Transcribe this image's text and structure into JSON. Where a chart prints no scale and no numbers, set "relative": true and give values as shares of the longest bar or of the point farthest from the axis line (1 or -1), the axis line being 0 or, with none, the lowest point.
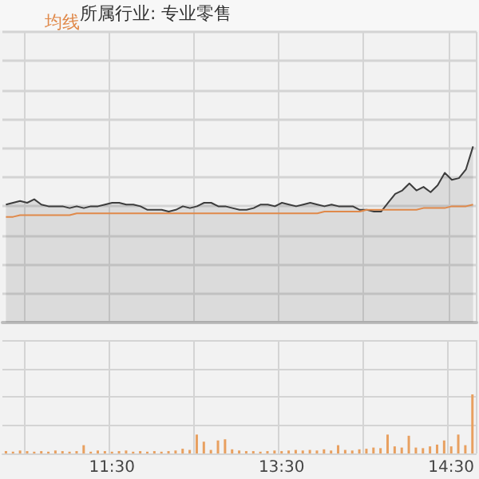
{
  "chart_data": [
    {
      "type": "line",
      "relative": true,
      "legend": "top left",
      "grid": true,
      "tick_labels": false,
      "annotations": [
        "所属行业: 专业零售"
      ],
      "categories": [
        null,
        null,
        null,
        null,
        null,
        null,
        null,
        null,
        null,
        null,
        null,
        null,
        null,
        null,
        null,
        null,
        null,
        null,
        null,
        null,
        null,
        null,
        null,
        null,
        null,
        null,
        null,
        null,
        null,
        null,
        null,
        null,
        null,
        null,
        null,
        null,
        null,
        null,
        null,
        null,
        null,
        null,
        null,
        null,
        null,
        null,
        null,
        null,
        null,
        null,
        null,
        null,
        null,
        null,
        null,
        null,
        null,
        null,
        null,
        null,
        null,
        null,
        null,
        null,
        null,
        null,
        null
      ],
      "series": [
        {
          "type": "area",
          "color": "#3c3c3c",
          "values": [
            0.67,
            0.68,
            0.69,
            0.68,
            0.7,
            0.67,
            0.66,
            0.66,
            0.66,
            0.65,
            0.66,
            0.65,
            0.66,
            0.66,
            0.67,
            0.68,
            0.68,
            0.67,
            0.67,
            0.66,
            0.64,
            0.64,
            0.64,
            0.63,
            0.64,
            0.66,
            0.65,
            0.66,
            0.68,
            0.68,
            0.66,
            0.66,
            0.65,
            0.64,
            0.64,
            0.65,
            0.67,
            0.67,
            0.66,
            0.68,
            0.67,
            0.66,
            0.67,
            0.68,
            0.67,
            0.66,
            0.67,
            0.66,
            0.66,
            0.66,
            0.64,
            0.64,
            0.63,
            0.63,
            0.68,
            0.73,
            0.75,
            0.79,
            0.75,
            0.77,
            0.74,
            0.78,
            0.85,
            0.81,
            0.82,
            0.87,
            1
          ]
        },
        {
          "name": "均线",
          "color": "#e0894a",
          "values": [
            0.6,
            0.6,
            0.61,
            0.61,
            0.61,
            0.61,
            0.61,
            0.61,
            0.61,
            0.61,
            0.62,
            0.62,
            0.62,
            0.62,
            0.62,
            0.62,
            0.62,
            0.62,
            0.62,
            0.62,
            0.62,
            0.62,
            0.62,
            0.62,
            0.62,
            0.62,
            0.62,
            0.62,
            0.62,
            0.62,
            0.62,
            0.62,
            0.62,
            0.62,
            0.62,
            0.62,
            0.62,
            0.62,
            0.62,
            0.62,
            0.62,
            0.62,
            0.62,
            0.62,
            0.62,
            0.63,
            0.63,
            0.63,
            0.63,
            0.63,
            0.63,
            0.64,
            0.64,
            0.64,
            0.64,
            0.64,
            0.64,
            0.64,
            0.64,
            0.65,
            0.65,
            0.65,
            0.65,
            0.66,
            0.66,
            0.66,
            0.67
          ]
        }
      ]
    },
    {
      "type": "bar",
      "relative": true,
      "grid": true,
      "tick_labels": "x",
      "color": "#e8a060",
      "categories": [
        null,
        null,
        null,
        null,
        null,
        null,
        null,
        null,
        null,
        null,
        null,
        null,
        null,
        null,
        null,
        "11:30",
        null,
        null,
        null,
        null,
        null,
        null,
        null,
        null,
        null,
        null,
        null,
        null,
        null,
        null,
        null,
        null,
        null,
        null,
        null,
        null,
        null,
        null,
        null,
        "13:30",
        null,
        null,
        null,
        null,
        null,
        null,
        null,
        null,
        null,
        null,
        null,
        null,
        null,
        null,
        null,
        null,
        null,
        null,
        null,
        null,
        null,
        null,
        null,
        "14:30",
        null,
        null,
        null
      ],
      "values": [
        0.04,
        0.03,
        0.05,
        0.04,
        0.03,
        0.04,
        0.03,
        0.05,
        0.04,
        0.03,
        0.04,
        0.14,
        0.03,
        0.05,
        0.04,
        0.03,
        0.04,
        0.05,
        0.03,
        0.04,
        0.03,
        0.04,
        0.03,
        0.04,
        0.05,
        0.08,
        0.06,
        0.32,
        0.2,
        0.06,
        0.22,
        0.24,
        0.07,
        0.05,
        0.04,
        0.04,
        0.03,
        0.04,
        0.05,
        0.04,
        0.05,
        0.06,
        0.05,
        0.06,
        0.05,
        0.07,
        0.05,
        0.14,
        0.06,
        0.05,
        0.07,
        0.08,
        0.1,
        0.09,
        0.32,
        0.12,
        0.1,
        0.3,
        0.1,
        0.09,
        0.12,
        0.15,
        0.22,
        0.12,
        0.32,
        0.14,
        1
      ]
    }
  ]
}
